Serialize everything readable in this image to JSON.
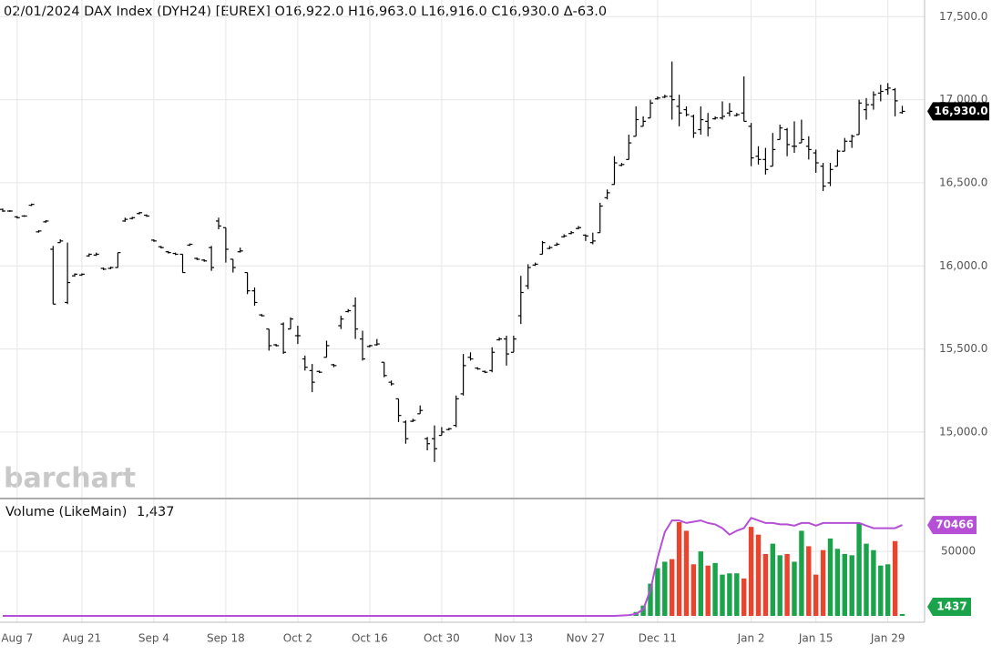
{
  "chart_data": [
    {
      "type": "ohlc",
      "title": "02/01/2024 DAX Index (DYH24) [EUREX] O16,922.0 H16,963.0 L16,916.0 C16,930.0 Δ-63.0",
      "watermark": "barchart",
      "color": "#000000",
      "grid": true,
      "ylim": [
        14600,
        17600
      ],
      "yticks": [
        {
          "value": 15000,
          "label": "15,000.0"
        },
        {
          "value": 15500,
          "label": "15,500.0"
        },
        {
          "value": 16000,
          "label": "16,000.0"
        },
        {
          "value": 16500,
          "label": "16,500.0"
        },
        {
          "value": 17000,
          "label": "17,000.0"
        },
        {
          "value": 17500,
          "label": "17,500.0"
        }
      ],
      "last_close_label": "16,930.0",
      "last_label_color": "#000000",
      "open": [
        16340,
        16330,
        16295,
        16300,
        16365,
        16205,
        16265,
        16100,
        16140,
        15780,
        15940,
        15945,
        16060,
        16065,
        15985,
        15985,
        15990,
        16270,
        16285,
        16315,
        16305,
        16155,
        16115,
        16085,
        16075,
        16070,
        16125,
        16045,
        16035,
        16110,
        16270,
        16230,
        16040,
        16085,
        15960,
        15850,
        15705,
        15620,
        15525,
        15650,
        15620,
        15580,
        15440,
        15370,
        15365,
        15450,
        15405,
        15640,
        15725,
        15760,
        15560,
        15515,
        15525,
        15420,
        15300,
        15200,
        15060,
        15065,
        15110,
        14960,
        14960,
        14980,
        15015,
        15040,
        15230,
        15450,
        15385,
        15365,
        15370,
        15555,
        15560,
        15480,
        15700,
        15880,
        16005,
        16070,
        16105,
        16125,
        16175,
        16195,
        16225,
        16185,
        16140,
        16200,
        16410,
        16490,
        16605,
        16640,
        16780,
        16840,
        16890,
        17005,
        17015,
        17020,
        16960,
        16940,
        16900,
        16820,
        16870,
        16885,
        16890,
        16920,
        16905,
        16920,
        16840,
        16660,
        16640,
        16600,
        16760,
        16820,
        16720,
        16740,
        16720,
        16680,
        16600,
        16500,
        16600,
        16690,
        16750,
        16790,
        16940,
        16970,
        17040,
        17060,
        17060,
        16922
      ],
      "high": [
        16345,
        16335,
        16300,
        16305,
        16375,
        16215,
        16275,
        16120,
        16160,
        16140,
        15955,
        15955,
        16075,
        16080,
        15990,
        15995,
        16080,
        16290,
        16295,
        16325,
        16310,
        16160,
        16120,
        16090,
        16080,
        16070,
        16135,
        16050,
        16040,
        16120,
        16290,
        16230,
        16040,
        16110,
        15960,
        15870,
        15710,
        15620,
        15530,
        15660,
        15690,
        15640,
        15460,
        15410,
        15370,
        15550,
        15410,
        15700,
        15740,
        15810,
        15610,
        15525,
        15560,
        15420,
        15310,
        15200,
        15070,
        15080,
        15160,
        14970,
        15040,
        15030,
        15025,
        15220,
        15470,
        15480,
        15390,
        15370,
        15510,
        15570,
        15580,
        15580,
        15940,
        16010,
        16020,
        16150,
        16120,
        16140,
        16190,
        16210,
        16240,
        16190,
        16200,
        16380,
        16460,
        16660,
        16620,
        16790,
        16960,
        16900,
        17000,
        17020,
        17030,
        17230,
        17030,
        16960,
        16910,
        16960,
        16920,
        16900,
        16990,
        16980,
        16920,
        17140,
        16860,
        16720,
        16710,
        16800,
        16850,
        16830,
        16870,
        16880,
        16780,
        16700,
        16620,
        16620,
        16700,
        16770,
        16790,
        17000,
        17010,
        17050,
        17090,
        17100,
        17070,
        16963
      ],
      "low": [
        16325,
        16325,
        16285,
        16295,
        16360,
        16200,
        16260,
        15770,
        16140,
        15770,
        15935,
        15940,
        16055,
        16060,
        15975,
        15980,
        15990,
        16265,
        16280,
        16310,
        16295,
        16145,
        16105,
        16075,
        16065,
        15960,
        16120,
        16035,
        16025,
        15970,
        16220,
        16020,
        15960,
        16080,
        15830,
        15760,
        15695,
        15490,
        15515,
        15470,
        15620,
        15530,
        15370,
        15240,
        15355,
        15450,
        15390,
        15620,
        15720,
        15560,
        15430,
        15510,
        15520,
        15330,
        15280,
        15060,
        14930,
        15060,
        15110,
        14890,
        14820,
        14980,
        15010,
        15030,
        15220,
        15430,
        15375,
        15355,
        15360,
        15550,
        15400,
        15480,
        15650,
        15860,
        16000,
        16070,
        16100,
        16120,
        16170,
        16190,
        16220,
        16150,
        16130,
        16200,
        16400,
        16490,
        16600,
        16640,
        16780,
        16840,
        16890,
        17000,
        17010,
        16880,
        16840,
        16900,
        16770,
        16790,
        16780,
        16880,
        16880,
        16900,
        16900,
        16870,
        16600,
        16610,
        16550,
        16600,
        16760,
        16660,
        16680,
        16740,
        16640,
        16560,
        16450,
        16480,
        16600,
        16690,
        16710,
        16790,
        16880,
        16940,
        16990,
        17030,
        16900,
        16916
      ],
      "close": [
        16330,
        16330,
        16290,
        16300,
        16370,
        16210,
        16270,
        15770,
        16150,
        15900,
        15950,
        15950,
        16070,
        16070,
        15980,
        15990,
        16080,
        16280,
        16290,
        16320,
        16300,
        16150,
        16110,
        16080,
        16070,
        15960,
        16130,
        16040,
        16030,
        15990,
        16240,
        16100,
        15990,
        16090,
        15850,
        15780,
        15700,
        15520,
        15520,
        15480,
        15680,
        15580,
        15390,
        15300,
        15360,
        15520,
        15400,
        15680,
        15730,
        15620,
        15440,
        15520,
        15530,
        15340,
        15290,
        15100,
        14960,
        15070,
        15130,
        14930,
        14900,
        15000,
        15020,
        15200,
        15400,
        15440,
        15380,
        15360,
        15480,
        15560,
        15470,
        15560,
        15840,
        15990,
        16010,
        16140,
        16110,
        16130,
        16180,
        16200,
        16230,
        16180,
        16150,
        16360,
        16440,
        16620,
        16610,
        16740,
        16880,
        16870,
        16980,
        17010,
        17020,
        17000,
        16920,
        16910,
        16800,
        16880,
        16830,
        16890,
        16900,
        16930,
        16910,
        16870,
        16650,
        16640,
        16580,
        16700,
        16830,
        16730,
        16720,
        16760,
        16700,
        16620,
        16480,
        16580,
        16690,
        16750,
        16780,
        16980,
        16970,
        17030,
        17050,
        17070,
        16993,
        16930
      ]
    },
    {
      "type": "bar",
      "title": "Volume  (LikeMain)",
      "legend_value": "1,437",
      "legend_value_color": "#1aa34a",
      "up_color": "#1aa34a",
      "down_color": "#e8442e",
      "grid": true,
      "ylim": [
        0,
        91000
      ],
      "yticks": [
        50000
      ],
      "categories": [
        null,
        null,
        "Aug 7",
        null,
        null,
        null,
        null,
        null,
        null,
        null,
        null,
        "Aug 21",
        null,
        null,
        null,
        null,
        null,
        null,
        null,
        null,
        null,
        "Sep 4",
        null,
        null,
        null,
        null,
        null,
        null,
        null,
        null,
        null,
        "Sep 18",
        null,
        null,
        null,
        null,
        null,
        null,
        null,
        null,
        null,
        "Oct 2",
        null,
        null,
        null,
        null,
        null,
        null,
        null,
        null,
        null,
        "Oct 16",
        null,
        null,
        null,
        null,
        null,
        null,
        null,
        null,
        null,
        "Oct 30",
        null,
        null,
        null,
        null,
        null,
        null,
        null,
        null,
        null,
        "Nov 13",
        null,
        null,
        null,
        null,
        null,
        null,
        null,
        null,
        null,
        "Nov 27",
        null,
        null,
        null,
        null,
        null,
        null,
        null,
        null,
        null,
        "Dec 11",
        null,
        null,
        null,
        null,
        null,
        null,
        null,
        null,
        null,
        null,
        null,
        null,
        "Jan 2",
        null,
        null,
        null,
        null,
        null,
        null,
        null,
        null,
        "Jan 15",
        null,
        null,
        null,
        null,
        null,
        null,
        null,
        null,
        null,
        "Jan 29",
        null,
        null
      ],
      "values": [
        0,
        0,
        0,
        0,
        0,
        0,
        0,
        0,
        0,
        0,
        0,
        0,
        0,
        0,
        0,
        0,
        0,
        0,
        0,
        0,
        0,
        0,
        0,
        0,
        0,
        0,
        0,
        0,
        0,
        0,
        0,
        0,
        0,
        0,
        0,
        0,
        0,
        0,
        0,
        0,
        0,
        0,
        0,
        0,
        0,
        0,
        0,
        0,
        0,
        0,
        0,
        0,
        0,
        0,
        0,
        0,
        0,
        0,
        0,
        0,
        0,
        0,
        0,
        0,
        0,
        0,
        0,
        0,
        0,
        0,
        0,
        0,
        0,
        0,
        0,
        0,
        0,
        0,
        0,
        0,
        0,
        0,
        0,
        0,
        0,
        0,
        500,
        1000,
        3000,
        8000,
        25000,
        37000,
        42000,
        44000,
        72700,
        66000,
        40000,
        50000,
        39000,
        41000,
        32000,
        33000,
        33000,
        29000,
        69000,
        63000,
        48000,
        56000,
        47000,
        48000,
        42000,
        66000,
        54000,
        32000,
        51000,
        60000,
        52000,
        48000,
        47000,
        72000,
        56000,
        51000,
        39000,
        40000,
        58000,
        1437
      ],
      "line": {
        "color": "#b44fd6",
        "values": [
          0,
          0,
          0,
          0,
          0,
          0,
          0,
          0,
          0,
          0,
          0,
          0,
          0,
          0,
          0,
          0,
          0,
          0,
          0,
          0,
          0,
          0,
          0,
          0,
          0,
          0,
          0,
          0,
          0,
          0,
          0,
          0,
          0,
          0,
          0,
          0,
          0,
          0,
          0,
          0,
          0,
          0,
          0,
          0,
          0,
          0,
          0,
          0,
          0,
          0,
          0,
          0,
          0,
          0,
          0,
          0,
          0,
          0,
          0,
          0,
          0,
          0,
          0,
          0,
          0,
          0,
          0,
          0,
          0,
          0,
          0,
          0,
          0,
          0,
          0,
          0,
          0,
          0,
          0,
          0,
          0,
          0,
          0,
          0,
          0,
          0,
          300,
          600,
          1500,
          5000,
          20000,
          45000,
          65000,
          74000,
          74000,
          72000,
          73000,
          74000,
          72000,
          71000,
          68000,
          63000,
          66000,
          68000,
          76000,
          74000,
          72000,
          72000,
          71000,
          71000,
          70000,
          72000,
          72000,
          70000,
          72000,
          72000,
          72000,
          72000,
          72000,
          72000,
          70000,
          68000,
          68000,
          68000,
          68000,
          70466
        ]
      }
    }
  ]
}
